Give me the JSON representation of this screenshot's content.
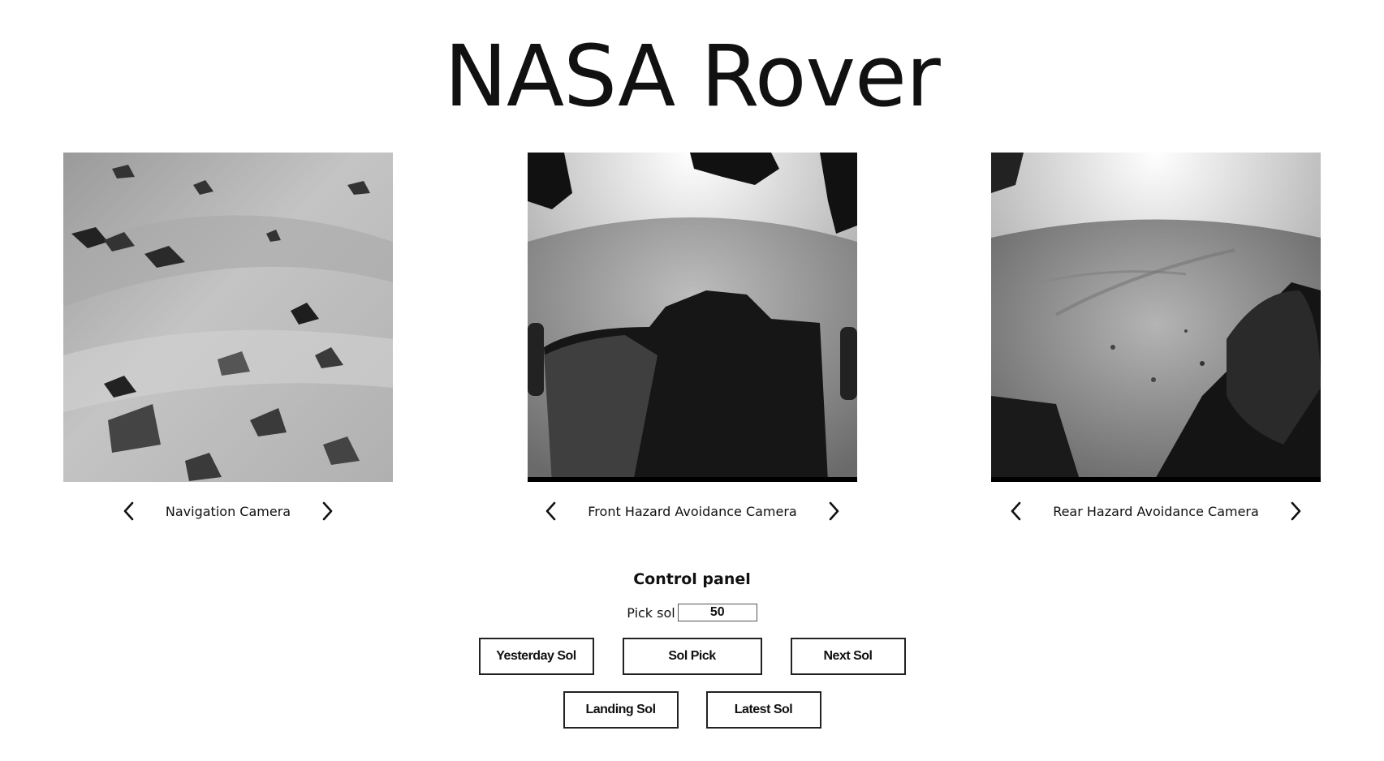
{
  "header": {
    "title": "NASA Rover"
  },
  "cameras": [
    {
      "label": "Navigation Camera",
      "prev_icon": "chevron-left-icon",
      "next_icon": "chevron-right-icon"
    },
    {
      "label": "Front Hazard Avoidance Camera",
      "prev_icon": "chevron-left-icon",
      "next_icon": "chevron-right-icon"
    },
    {
      "label": "Rear Hazard Avoidance Camera",
      "prev_icon": "chevron-left-icon",
      "next_icon": "chevron-right-icon"
    }
  ],
  "control_panel": {
    "title": "Control panel",
    "sol_label": "Pick sol",
    "sol_value": "50",
    "buttons": {
      "yesterday": "Yesterday Sol",
      "pick": "Sol Pick",
      "next": "Next Sol",
      "landing": "Landing Sol",
      "latest": "Latest Sol"
    }
  }
}
